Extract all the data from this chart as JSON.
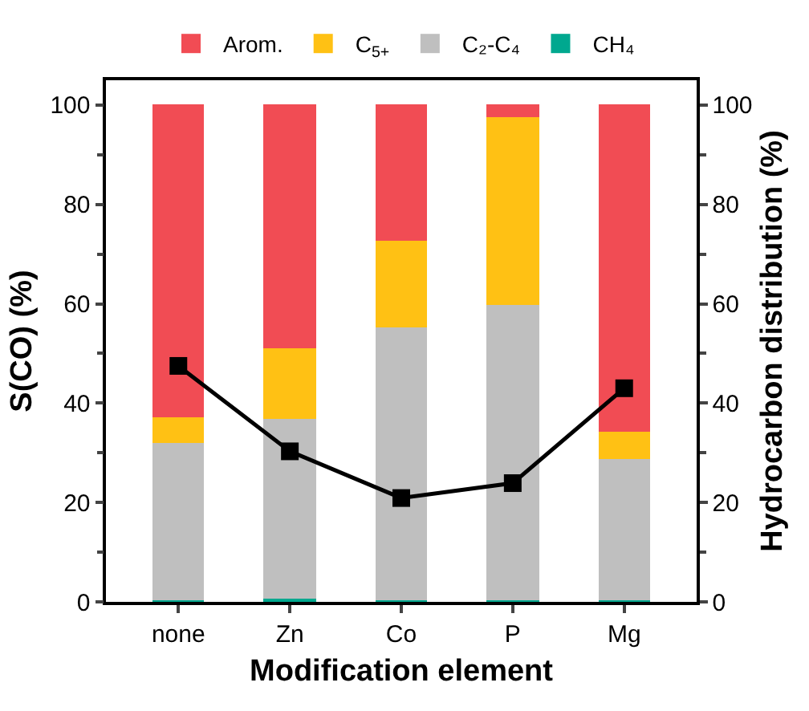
{
  "chart_data": {
    "type": "bar",
    "stacked": true,
    "xlabel": "Modification element",
    "ylabel": "S(CO) (%)",
    "y2label": "Hydrocarbon distribution (%)",
    "categories": [
      "none",
      "Zn",
      "Co",
      "P",
      "Mg"
    ],
    "series": [
      {
        "name": "CH₄",
        "color": "#00a88f",
        "values": [
          0.3,
          0.8,
          0.2,
          0.2,
          0.3
        ],
        "axis": "y2"
      },
      {
        "name": "C₂-C₄",
        "color": "#bfbfbf",
        "values": [
          31.6,
          36.1,
          54.9,
          59.6,
          28.4
        ],
        "axis": "y2"
      },
      {
        "name": "C$_{5+}$",
        "color": "#ffc114",
        "values": [
          5.3,
          14.0,
          17.6,
          37.9,
          5.4
        ],
        "axis": "y2"
      },
      {
        "name": "Arom.",
        "color": "#f14c54",
        "values": [
          62.8,
          49.1,
          27.3,
          2.3,
          65.9
        ],
        "axis": "y2"
      },
      {
        "type": "line",
        "color": "#000000",
        "values": [
          47.5,
          30.3,
          20.9,
          23.9,
          43.0
        ],
        "axis": "y"
      }
    ],
    "ylim": [
      0,
      105
    ],
    "yticks": [
      0,
      20,
      40,
      60,
      80,
      100
    ],
    "y2lim": [
      0,
      105
    ],
    "y2ticks": [
      0,
      20,
      40,
      60,
      80,
      100
    ],
    "marker": "square",
    "line_style": "solid",
    "legend": "top"
  }
}
